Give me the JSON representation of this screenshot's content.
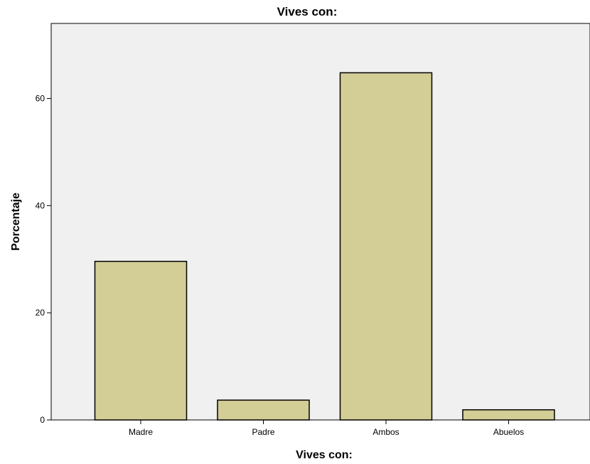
{
  "chart_data": {
    "type": "bar",
    "title": "Vives con:",
    "xlabel": "Vives con:",
    "ylabel": "Porcentaje",
    "categories": [
      "Madre",
      "Padre",
      "Ambos",
      "Abuelos"
    ],
    "values": [
      29.6,
      3.7,
      64.8,
      1.9
    ],
    "ylim": [
      0,
      74
    ],
    "yticks": [
      "0",
      "20",
      "40",
      "60"
    ],
    "grid": false,
    "legend": "none",
    "colors": {
      "bar_fill": "#d3cd96",
      "bar_stroke": "#000000",
      "plot_background": "#f0f0f0",
      "axis": "#000000"
    }
  }
}
